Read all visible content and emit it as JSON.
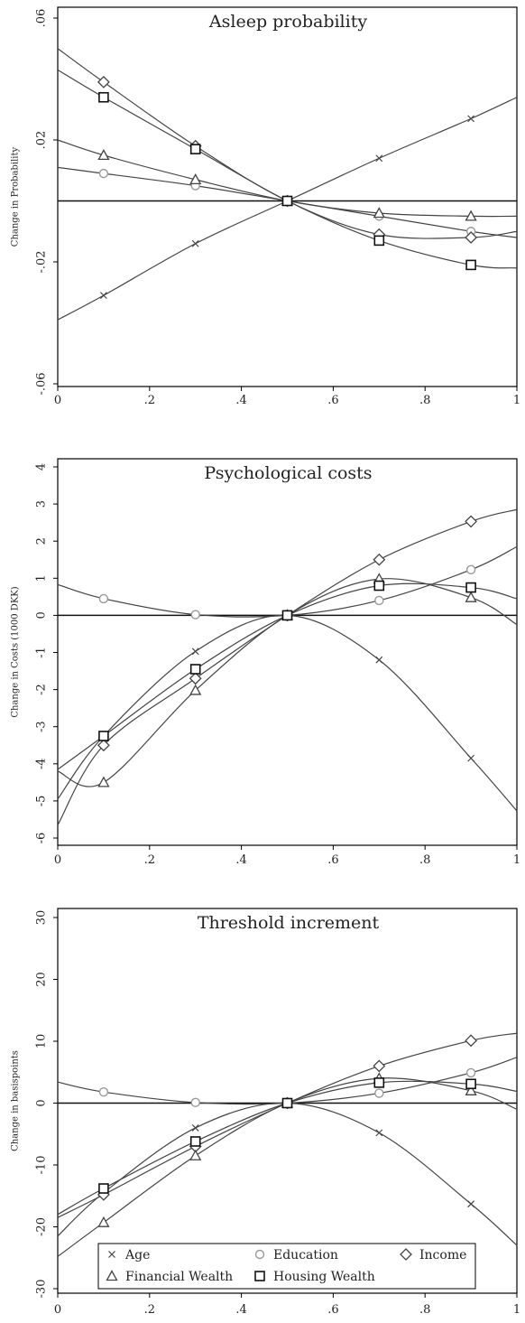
{
  "legend": {
    "items": [
      {
        "marker": "x",
        "label": "Age"
      },
      {
        "marker": "circle",
        "label": "Education"
      },
      {
        "marker": "diamond",
        "label": "Income"
      },
      {
        "marker": "triangle",
        "label": "Financial Wealth"
      },
      {
        "marker": "square",
        "label": "Housing Wealth"
      }
    ]
  },
  "colors": {
    "line": "#444444",
    "circle_marker": "#999999",
    "frame": "#000000"
  },
  "chart_data": [
    {
      "type": "line",
      "title": "Asleep probability",
      "ylabel": "Change in Probability",
      "xlabel": "",
      "xlim": [
        0,
        1
      ],
      "ylim": [
        -0.06,
        0.06
      ],
      "x_ticks": [
        0,
        0.2,
        0.4,
        0.6,
        0.8,
        1
      ],
      "x_tick_labels": [
        "0",
        ".2",
        ".4",
        ".6",
        ".8",
        "1"
      ],
      "y_ticks": [
        -0.06,
        -0.02,
        0.02,
        0.06
      ],
      "y_tick_labels": [
        "-.06",
        "-.02",
        ".02",
        ".06"
      ],
      "x": [
        0.1,
        0.3,
        0.5,
        0.7,
        0.9
      ],
      "reference_line": 0,
      "series": [
        {
          "name": "Age",
          "marker": "x",
          "values": [
            -0.031,
            -0.014,
            0,
            0.014,
            0.027
          ],
          "curve": [
            [
              0,
              -0.039
            ],
            [
              0.1,
              -0.031
            ],
            [
              0.3,
              -0.014
            ],
            [
              0.5,
              0
            ],
            [
              0.7,
              0.014
            ],
            [
              0.9,
              0.027
            ],
            [
              1,
              0.034
            ]
          ]
        },
        {
          "name": "Education",
          "marker": "circle",
          "values": [
            0.009,
            0.005,
            0,
            -0.005,
            -0.01
          ],
          "curve": [
            [
              0,
              0.011
            ],
            [
              0.1,
              0.009
            ],
            [
              0.3,
              0.005
            ],
            [
              0.5,
              0
            ],
            [
              0.7,
              -0.005
            ],
            [
              0.9,
              -0.01
            ],
            [
              1,
              -0.012
            ]
          ]
        },
        {
          "name": "Income",
          "marker": "diamond",
          "values": [
            0.039,
            0.018,
            0,
            -0.011,
            -0.012
          ],
          "curve": [
            [
              0,
              0.05
            ],
            [
              0.1,
              0.039
            ],
            [
              0.3,
              0.018
            ],
            [
              0.5,
              0
            ],
            [
              0.7,
              -0.011
            ],
            [
              0.9,
              -0.012
            ],
            [
              1,
              -0.01
            ]
          ]
        },
        {
          "name": "Financial Wealth",
          "marker": "triangle",
          "values": [
            0.015,
            0.007,
            0,
            -0.004,
            -0.005
          ],
          "curve": [
            [
              0,
              0.02
            ],
            [
              0.1,
              0.015
            ],
            [
              0.3,
              0.007
            ],
            [
              0.5,
              0
            ],
            [
              0.7,
              -0.004
            ],
            [
              0.9,
              -0.005
            ],
            [
              1,
              -0.005
            ]
          ]
        },
        {
          "name": "Housing Wealth",
          "marker": "square",
          "values": [
            0.034,
            0.017,
            0,
            -0.013,
            -0.021
          ],
          "curve": [
            [
              0,
              0.043
            ],
            [
              0.1,
              0.034
            ],
            [
              0.3,
              0.017
            ],
            [
              0.5,
              0
            ],
            [
              0.7,
              -0.013
            ],
            [
              0.9,
              -0.021
            ],
            [
              1,
              -0.022
            ]
          ]
        }
      ]
    },
    {
      "type": "line",
      "title": "Psychological costs",
      "ylabel": "Change in Costs (1000 DKK)",
      "xlabel": "",
      "xlim": [
        0,
        1
      ],
      "ylim": [
        -6,
        4
      ],
      "x_ticks": [
        0,
        0.2,
        0.4,
        0.6,
        0.8,
        1
      ],
      "x_tick_labels": [
        "0",
        ".2",
        ".4",
        ".6",
        ".8",
        "1"
      ],
      "y_ticks": [
        -6,
        -5,
        -4,
        -3,
        -2,
        -1,
        0,
        1,
        2,
        3,
        4
      ],
      "y_tick_labels": [
        "-6",
        "-5",
        "-4",
        "-3",
        "-2",
        "-1",
        "0",
        "1",
        "2",
        "3",
        "4"
      ],
      "x": [
        0.1,
        0.3,
        0.5,
        0.7,
        0.9
      ],
      "reference_line": 0,
      "series": [
        {
          "name": "Age",
          "marker": "x",
          "values": [
            -3.25,
            -0.97,
            0,
            -1.2,
            -3.85
          ],
          "curve": [
            [
              0,
              -4.95
            ],
            [
              0.1,
              -3.25
            ],
            [
              0.3,
              -0.97
            ],
            [
              0.5,
              0
            ],
            [
              0.7,
              -1.2
            ],
            [
              0.9,
              -3.85
            ],
            [
              1,
              -5.27
            ]
          ]
        },
        {
          "name": "Education",
          "marker": "circle",
          "values": [
            0.45,
            0.02,
            0,
            0.4,
            1.23
          ],
          "curve": [
            [
              0,
              0.83
            ],
            [
              0.1,
              0.45
            ],
            [
              0.3,
              0.02
            ],
            [
              0.5,
              0
            ],
            [
              0.7,
              0.4
            ],
            [
              0.9,
              1.23
            ],
            [
              1,
              1.85
            ]
          ]
        },
        {
          "name": "Income",
          "marker": "diamond",
          "values": [
            -3.5,
            -1.7,
            0,
            1.5,
            2.53
          ],
          "curve": [
            [
              0,
              -5.65
            ],
            [
              0.1,
              -3.5
            ],
            [
              0.3,
              -1.7
            ],
            [
              0.5,
              0
            ],
            [
              0.7,
              1.5
            ],
            [
              0.9,
              2.53
            ],
            [
              1,
              2.85
            ]
          ]
        },
        {
          "name": "Financial Wealth",
          "marker": "triangle",
          "values": [
            -4.5,
            -2.02,
            0,
            0.98,
            0.48
          ],
          "curve": [
            [
              0,
              -4.2
            ],
            [
              0.1,
              -4.5
            ],
            [
              0.3,
              -2.02
            ],
            [
              0.5,
              0
            ],
            [
              0.7,
              0.98
            ],
            [
              0.9,
              0.48
            ],
            [
              1,
              -0.25
            ]
          ]
        },
        {
          "name": "Housing Wealth",
          "marker": "square",
          "values": [
            -3.25,
            -1.45,
            0,
            0.8,
            0.75
          ],
          "curve": [
            [
              0,
              -4.15
            ],
            [
              0.1,
              -3.25
            ],
            [
              0.3,
              -1.45
            ],
            [
              0.5,
              0
            ],
            [
              0.7,
              0.8
            ],
            [
              0.9,
              0.75
            ],
            [
              1,
              0.45
            ]
          ]
        }
      ]
    },
    {
      "type": "line",
      "title": "Threshold increment",
      "ylabel": "Change in basispoints",
      "xlabel": "",
      "xlim": [
        0,
        1
      ],
      "ylim": [
        -30,
        30
      ],
      "x_ticks": [
        0,
        0.2,
        0.4,
        0.6,
        0.8,
        1
      ],
      "x_tick_labels": [
        "0",
        ".2",
        ".4",
        ".6",
        ".8",
        "1"
      ],
      "y_ticks": [
        -30,
        -20,
        -10,
        0,
        10,
        20,
        30
      ],
      "y_tick_labels": [
        "-30",
        "-20",
        "-10",
        "0",
        "10",
        "20",
        "30"
      ],
      "x": [
        0.1,
        0.3,
        0.5,
        0.7,
        0.9
      ],
      "reference_line": 0,
      "series": [
        {
          "name": "Age",
          "marker": "x",
          "values": [
            -14.5,
            -4,
            0,
            -4.8,
            -16.3
          ],
          "curve": [
            [
              0,
              -21.5
            ],
            [
              0.1,
              -14.5
            ],
            [
              0.3,
              -4
            ],
            [
              0.5,
              0
            ],
            [
              0.7,
              -4.8
            ],
            [
              0.9,
              -16.3
            ],
            [
              1,
              -23
            ]
          ]
        },
        {
          "name": "Education",
          "marker": "circle",
          "values": [
            1.8,
            0.1,
            0,
            1.6,
            4.9
          ],
          "curve": [
            [
              0,
              3.4
            ],
            [
              0.1,
              1.8
            ],
            [
              0.3,
              0.1
            ],
            [
              0.5,
              0
            ],
            [
              0.7,
              1.6
            ],
            [
              0.9,
              4.9
            ],
            [
              1,
              7.4
            ]
          ]
        },
        {
          "name": "Income",
          "marker": "diamond",
          "values": [
            -14.8,
            -7,
            0,
            6,
            10.1
          ],
          "curve": [
            [
              0,
              -18.5
            ],
            [
              0.1,
              -14.8
            ],
            [
              0.3,
              -7
            ],
            [
              0.5,
              0
            ],
            [
              0.7,
              6
            ],
            [
              0.9,
              10.1
            ],
            [
              1,
              11.3
            ]
          ]
        },
        {
          "name": "Financial Wealth",
          "marker": "triangle",
          "values": [
            -19.3,
            -8.5,
            0,
            4,
            2
          ],
          "curve": [
            [
              0,
              -24.8
            ],
            [
              0.1,
              -19.3
            ],
            [
              0.3,
              -8.5
            ],
            [
              0.5,
              0
            ],
            [
              0.7,
              4
            ],
            [
              0.9,
              2
            ],
            [
              1,
              -1
            ]
          ]
        },
        {
          "name": "Housing Wealth",
          "marker": "square",
          "values": [
            -13.8,
            -6.2,
            0,
            3.3,
            3.1
          ],
          "curve": [
            [
              0,
              -18
            ],
            [
              0.1,
              -13.8
            ],
            [
              0.3,
              -6.2
            ],
            [
              0.5,
              0
            ],
            [
              0.7,
              3.3
            ],
            [
              0.9,
              3.1
            ],
            [
              1,
              1.9
            ]
          ]
        }
      ]
    }
  ]
}
